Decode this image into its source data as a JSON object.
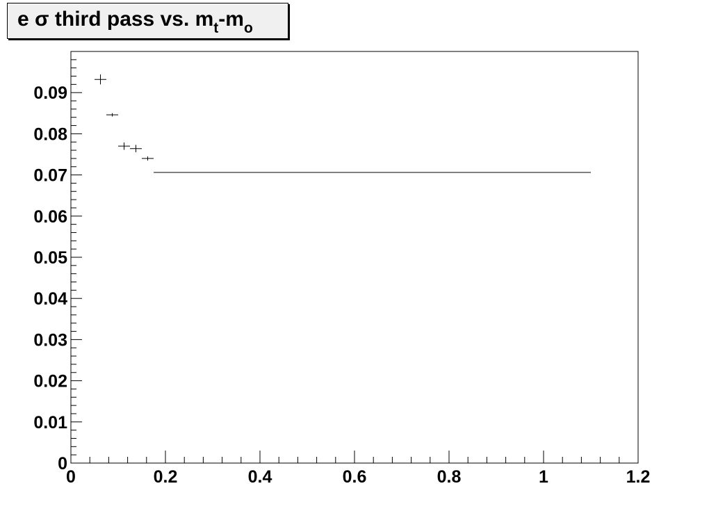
{
  "chart_data": {
    "type": "scatter",
    "title": {
      "prefix": "e σ third pass vs. m",
      "sub1": "t",
      "mid": "-m",
      "sub2": "o"
    },
    "xlabel": "",
    "ylabel": "",
    "xlim": [
      0,
      1.2
    ],
    "ylim": [
      0,
      0.1
    ],
    "x_ticks": [
      0,
      0.2,
      0.4,
      0.6,
      0.8,
      1,
      1.2
    ],
    "x_tick_labels": [
      "0",
      "0.2",
      "0.4",
      "0.6",
      "0.8",
      "1",
      "1.2"
    ],
    "y_ticks": [
      0,
      0.01,
      0.02,
      0.03,
      0.04,
      0.05,
      0.06,
      0.07,
      0.08,
      0.09
    ],
    "y_tick_labels": [
      "0",
      "0.01",
      "0.02",
      "0.03",
      "0.04",
      "0.05",
      "0.06",
      "0.07",
      "0.08",
      "0.09"
    ],
    "grid": false,
    "points": [
      {
        "x": 0.0625,
        "y": 0.0932,
        "xerr": 0.0125,
        "yerr": 0.0012
      },
      {
        "x": 0.0875,
        "y": 0.0846,
        "xerr": 0.0125,
        "yerr": 0.0004
      },
      {
        "x": 0.1125,
        "y": 0.077,
        "xerr": 0.0125,
        "yerr": 0.0009
      },
      {
        "x": 0.1375,
        "y": 0.0764,
        "xerr": 0.0125,
        "yerr": 0.0009
      },
      {
        "x": 0.1625,
        "y": 0.074,
        "xerr": 0.0125,
        "yerr": 0.0005
      },
      {
        "x": 0.6375,
        "y": 0.0706,
        "xerr": 0.4625,
        "yerr": 0.0
      }
    ]
  }
}
